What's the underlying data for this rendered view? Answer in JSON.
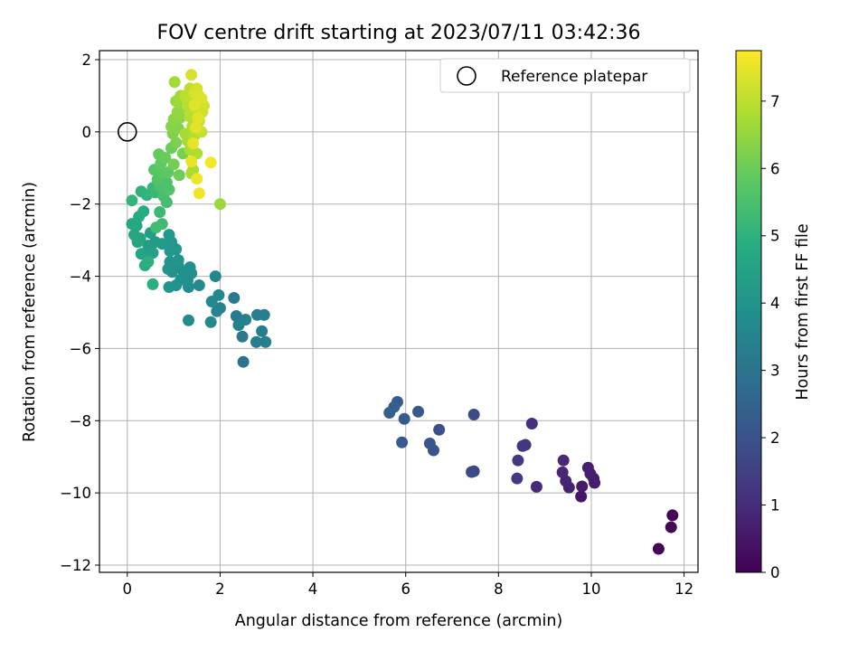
{
  "chart_data": {
    "type": "scatter",
    "title": "FOV centre drift starting at 2023/07/11 03:42:36",
    "xlabel": "Angular distance from reference (arcmin)",
    "ylabel": "Rotation from reference (arcmin)",
    "colorbar_label": "Hours from first FF file",
    "xlim": [
      -0.6,
      12.3
    ],
    "ylim": [
      -12.2,
      2.25
    ],
    "colorbar_range": [
      0,
      7.75
    ],
    "xticks": [
      0,
      2,
      4,
      6,
      8,
      10,
      12
    ],
    "xtick_labels": [
      "0",
      "2",
      "4",
      "6",
      "8",
      "10",
      "12"
    ],
    "yticks": [
      2,
      0,
      -2,
      -4,
      -6,
      -8,
      -10,
      -12
    ],
    "ytick_labels": [
      "2",
      "0",
      "−2",
      "−4",
      "−6",
      "−8",
      "−10",
      "−12"
    ],
    "cticks": [
      0,
      1,
      2,
      3,
      4,
      5,
      6,
      7
    ],
    "ctick_labels": [
      "0",
      "1",
      "2",
      "3",
      "4",
      "5",
      "6",
      "7"
    ],
    "grid": true,
    "colormap": "viridis",
    "legend": {
      "placement": "top-right",
      "label": "Reference platepar"
    },
    "reference_point": {
      "x": 0,
      "y": 0
    },
    "points": [
      [
        11.45,
        -11.55,
        0.05
      ],
      [
        11.72,
        -10.95,
        0.08
      ],
      [
        11.75,
        -10.62,
        0.1
      ],
      [
        9.78,
        -10.1,
        0.5
      ],
      [
        9.8,
        -9.82,
        0.55
      ],
      [
        10.07,
        -9.72,
        0.6
      ],
      [
        10.05,
        -9.6,
        0.62
      ],
      [
        9.98,
        -9.47,
        0.65
      ],
      [
        9.93,
        -9.3,
        0.68
      ],
      [
        9.52,
        -9.85,
        0.75
      ],
      [
        9.45,
        -9.67,
        0.8
      ],
      [
        9.38,
        -9.43,
        0.85
      ],
      [
        9.4,
        -9.1,
        0.9
      ],
      [
        8.82,
        -9.83,
        0.95
      ],
      [
        8.72,
        -8.08,
        1.05
      ],
      [
        8.58,
        -8.67,
        1.2
      ],
      [
        8.52,
        -8.7,
        1.25
      ],
      [
        8.42,
        -9.1,
        1.3
      ],
      [
        8.4,
        -9.6,
        1.35
      ],
      [
        7.47,
        -9.4,
        1.7
      ],
      [
        7.42,
        -9.42,
        1.72
      ],
      [
        7.47,
        -7.83,
        1.8
      ],
      [
        6.72,
        -8.25,
        1.9
      ],
      [
        6.6,
        -8.82,
        2.0
      ],
      [
        6.52,
        -8.63,
        2.05
      ],
      [
        6.27,
        -7.75,
        2.15
      ],
      [
        5.97,
        -7.95,
        2.2
      ],
      [
        5.92,
        -8.6,
        2.25
      ],
      [
        5.82,
        -7.48,
        2.3
      ],
      [
        5.75,
        -7.62,
        2.35
      ],
      [
        5.65,
        -7.78,
        2.4
      ],
      [
        2.5,
        -6.37,
        3.0
      ],
      [
        2.48,
        -5.67,
        3.1
      ],
      [
        2.42,
        -5.22,
        3.15
      ],
      [
        2.35,
        -5.1,
        3.2
      ],
      [
        2.3,
        -4.6,
        3.22
      ],
      [
        2.78,
        -5.82,
        3.25
      ],
      [
        2.9,
        -5.52,
        3.28
      ],
      [
        2.98,
        -5.82,
        3.3
      ],
      [
        2.95,
        -5.07,
        3.32
      ],
      [
        2.8,
        -5.07,
        3.35
      ],
      [
        2.55,
        -5.2,
        3.38
      ],
      [
        2.4,
        -5.35,
        3.4
      ],
      [
        2.0,
        -4.88,
        3.45
      ],
      [
        1.93,
        -4.97,
        3.5
      ],
      [
        1.97,
        -4.52,
        3.55
      ],
      [
        1.9,
        -4.0,
        3.6
      ],
      [
        1.82,
        -4.7,
        3.62
      ],
      [
        1.8,
        -5.27,
        3.65
      ],
      [
        1.55,
        -4.25,
        3.7
      ],
      [
        1.32,
        -5.22,
        3.75
      ],
      [
        1.32,
        -4.3,
        3.78
      ],
      [
        1.3,
        -4.12,
        3.8
      ],
      [
        1.38,
        -3.92,
        3.82
      ],
      [
        1.35,
        -3.75,
        3.85
      ],
      [
        1.22,
        -3.9,
        3.88
      ],
      [
        1.15,
        -4.1,
        3.9
      ],
      [
        1.1,
        -3.72,
        3.92
      ],
      [
        1.05,
        -4.25,
        3.95
      ],
      [
        0.97,
        -3.88,
        3.98
      ],
      [
        0.92,
        -3.6,
        4.0
      ],
      [
        0.88,
        -3.8,
        4.02
      ],
      [
        0.9,
        -4.3,
        4.05
      ],
      [
        1.1,
        -3.55,
        4.08
      ],
      [
        1.05,
        -3.25,
        4.1
      ],
      [
        0.92,
        -3.3,
        4.12
      ],
      [
        0.95,
        -3.05,
        4.15
      ],
      [
        0.9,
        -2.85,
        4.18
      ],
      [
        0.75,
        -3.1,
        4.2
      ],
      [
        0.6,
        -3.05,
        4.25
      ],
      [
        0.45,
        -3.15,
        4.3
      ],
      [
        0.5,
        -2.8,
        4.35
      ],
      [
        0.42,
        -3.45,
        4.4
      ],
      [
        0.55,
        -3.35,
        4.45
      ],
      [
        0.3,
        -3.38,
        4.5
      ],
      [
        0.22,
        -3.05,
        4.55
      ],
      [
        0.28,
        -2.95,
        4.58
      ],
      [
        0.2,
        -2.6,
        4.6
      ],
      [
        0.15,
        -2.85,
        4.65
      ],
      [
        0.1,
        -2.55,
        4.7
      ],
      [
        0.25,
        -2.35,
        4.75
      ],
      [
        0.35,
        -2.2,
        4.8
      ],
      [
        0.38,
        -3.7,
        4.85
      ],
      [
        0.55,
        -4.22,
        4.9
      ],
      [
        0.45,
        -3.6,
        4.95
      ],
      [
        0.3,
        -1.65,
        5.0
      ],
      [
        0.42,
        -1.75,
        5.05
      ],
      [
        0.1,
        -1.9,
        5.1
      ],
      [
        0.55,
        -1.55,
        5.15
      ],
      [
        0.6,
        -1.68,
        5.2
      ],
      [
        0.7,
        -2.22,
        5.25
      ],
      [
        0.75,
        -2.55,
        5.3
      ],
      [
        0.62,
        -2.65,
        5.35
      ],
      [
        0.85,
        -1.95,
        5.4
      ],
      [
        0.78,
        -1.78,
        5.45
      ],
      [
        0.7,
        -1.5,
        5.5
      ],
      [
        0.85,
        -1.4,
        5.55
      ],
      [
        0.9,
        -1.6,
        5.6
      ],
      [
        0.65,
        -1.32,
        5.65
      ],
      [
        0.58,
        -1.05,
        5.7
      ],
      [
        0.75,
        -1.15,
        5.75
      ],
      [
        0.88,
        -1.12,
        5.8
      ],
      [
        0.72,
        -0.88,
        5.85
      ],
      [
        0.68,
        -0.62,
        5.9
      ],
      [
        0.82,
        -0.72,
        5.95
      ],
      [
        0.95,
        -0.45,
        6.0
      ],
      [
        1.12,
        -1.2,
        6.05
      ],
      [
        1.0,
        -0.9,
        6.1
      ],
      [
        1.2,
        -0.6,
        6.15
      ],
      [
        1.05,
        -0.3,
        6.2
      ],
      [
        0.98,
        -0.05,
        6.25
      ],
      [
        1.1,
        0.1,
        6.3
      ],
      [
        0.95,
        0.15,
        6.35
      ],
      [
        1.0,
        0.35,
        6.4
      ],
      [
        1.15,
        0.4,
        6.45
      ],
      [
        1.08,
        0.55,
        6.5
      ],
      [
        1.2,
        0.68,
        6.55
      ],
      [
        1.05,
        0.85,
        6.6
      ],
      [
        1.15,
        1.0,
        6.65
      ],
      [
        1.02,
        1.38,
        6.7
      ],
      [
        1.25,
        -0.05,
        6.72
      ],
      [
        1.3,
        -0.25,
        6.75
      ],
      [
        1.35,
        -0.5,
        6.78
      ],
      [
        1.38,
        -1.15,
        6.8
      ],
      [
        1.42,
        -1.05,
        6.82
      ],
      [
        1.5,
        -0.6,
        6.85
      ],
      [
        1.45,
        -0.1,
        6.88
      ],
      [
        1.4,
        0.15,
        6.9
      ],
      [
        1.35,
        0.42,
        6.92
      ],
      [
        1.3,
        0.72,
        6.95
      ],
      [
        1.25,
        1.0,
        6.98
      ],
      [
        1.35,
        1.2,
        7.0
      ],
      [
        1.4,
        0.9,
        7.02
      ],
      [
        1.5,
        0.6,
        7.05
      ],
      [
        1.55,
        0.3,
        7.08
      ],
      [
        1.6,
        0.0,
        7.1
      ],
      [
        1.58,
        0.85,
        7.15
      ],
      [
        1.62,
        0.55,
        7.2
      ],
      [
        1.65,
        0.72,
        7.22
      ],
      [
        1.5,
        1.2,
        7.25
      ],
      [
        1.38,
        1.58,
        7.3
      ],
      [
        1.45,
        1.08,
        7.32
      ],
      [
        1.55,
        1.0,
        7.35
      ],
      [
        1.6,
        0.92,
        7.38
      ],
      [
        1.45,
        0.75,
        7.4
      ],
      [
        1.52,
        0.38,
        7.42
      ],
      [
        1.48,
        0.12,
        7.45
      ],
      [
        1.42,
        -0.32,
        7.5
      ],
      [
        1.38,
        -0.82,
        7.52
      ],
      [
        1.5,
        -1.3,
        7.55
      ],
      [
        1.55,
        -1.7,
        7.58
      ],
      [
        1.8,
        -0.85,
        7.65
      ],
      [
        2.0,
        -2.0,
        6.6
      ]
    ]
  }
}
